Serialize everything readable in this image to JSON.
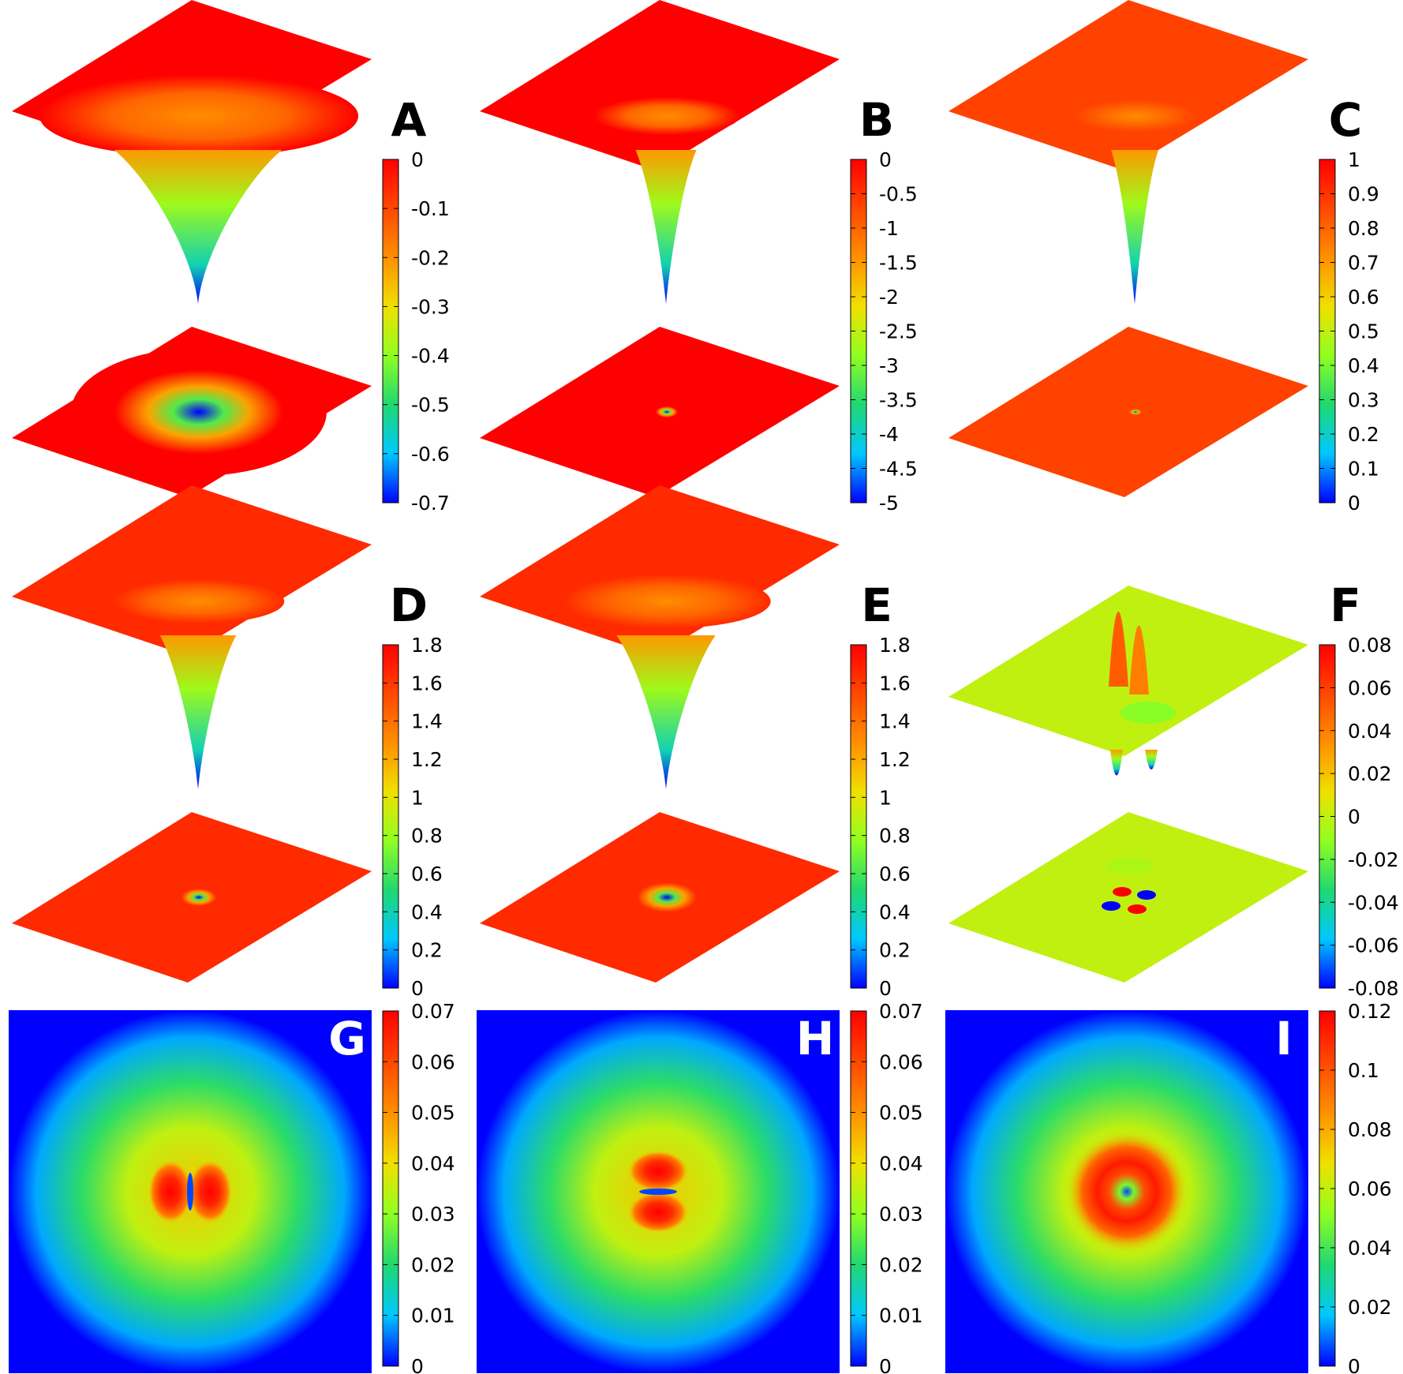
{
  "colormap": [
    "#0000ff",
    "#00c8ff",
    "#20d870",
    "#90ff20",
    "#f0e000",
    "#ff9000",
    "#ff4800",
    "#ff0000"
  ],
  "chart_data": [
    {
      "label": "A",
      "type": "surface3d",
      "colorbar": {
        "min": -0.7,
        "max": 0,
        "ticks": [
          "0",
          "-0.1",
          "-0.2",
          "-0.3",
          "-0.4",
          "-0.5",
          "-0.6",
          "-0.7"
        ]
      },
      "field": {
        "base": 0,
        "min": -0.7,
        "shape": "well",
        "width": 0.22
      }
    },
    {
      "label": "B",
      "type": "surface3d",
      "colorbar": {
        "min": -5,
        "max": 0,
        "ticks": [
          "0",
          "-0.5",
          "-1",
          "-1.5",
          "-2",
          "-2.5",
          "-3",
          "-3.5",
          "-4",
          "-4.5",
          "-5"
        ]
      },
      "field": {
        "base": 0,
        "min": -5,
        "shape": "well",
        "width": 0.08
      }
    },
    {
      "label": "C",
      "type": "surface3d",
      "colorbar": {
        "min": 0,
        "max": 1,
        "ticks": [
          "1",
          "0.9",
          "0.8",
          "0.7",
          "0.6",
          "0.5",
          "0.4",
          "0.3",
          "0.2",
          "0.1",
          "0"
        ]
      },
      "field": {
        "base": 0.87,
        "min": 0,
        "shape": "well",
        "width": 0.06
      }
    },
    {
      "label": "D",
      "type": "surface3d",
      "colorbar": {
        "min": 0,
        "max": 1.8,
        "ticks": [
          "1.8",
          "1.6",
          "1.4",
          "1.2",
          "1",
          "0.8",
          "0.6",
          "0.4",
          "0.2",
          "0"
        ]
      },
      "field": {
        "base": 1.65,
        "min": 0,
        "shape": "well",
        "width": 0.1
      }
    },
    {
      "label": "E",
      "type": "surface3d",
      "colorbar": {
        "min": 0,
        "max": 1.8,
        "ticks": [
          "1.8",
          "1.6",
          "1.4",
          "1.2",
          "1",
          "0.8",
          "0.6",
          "0.4",
          "0.2",
          "0"
        ]
      },
      "field": {
        "base": 1.65,
        "min": 0,
        "shape": "well",
        "width": 0.13
      }
    },
    {
      "label": "F",
      "type": "surface3d",
      "colorbar": {
        "min": -0.08,
        "max": 0.08,
        "ticks": [
          "0.08",
          "0.06",
          "0.04",
          "0.02",
          "0",
          "-0.02",
          "-0.04",
          "-0.06",
          "-0.08"
        ]
      },
      "field": {
        "base": 0,
        "min": -0.08,
        "max": 0.08,
        "shape": "quadrupole"
      }
    },
    {
      "label": "G",
      "type": "heatmap",
      "colorbar": {
        "min": 0,
        "max": 0.07,
        "ticks": [
          "0.07",
          "0.06",
          "0.05",
          "0.04",
          "0.03",
          "0.02",
          "0.01",
          "0"
        ]
      },
      "field": {
        "shape": "dipole-x",
        "peak": 0.07
      }
    },
    {
      "label": "H",
      "type": "heatmap",
      "colorbar": {
        "min": 0,
        "max": 0.07,
        "ticks": [
          "0.07",
          "0.06",
          "0.05",
          "0.04",
          "0.03",
          "0.02",
          "0.01",
          "0"
        ]
      },
      "field": {
        "shape": "dipole-y",
        "peak": 0.07
      }
    },
    {
      "label": "I",
      "type": "heatmap",
      "colorbar": {
        "min": 0,
        "max": 0.12,
        "ticks": [
          "0.12",
          "0.1",
          "0.08",
          "0.06",
          "0.04",
          "0.02",
          "0"
        ]
      },
      "field": {
        "shape": "ring",
        "peak": 0.12
      }
    }
  ]
}
